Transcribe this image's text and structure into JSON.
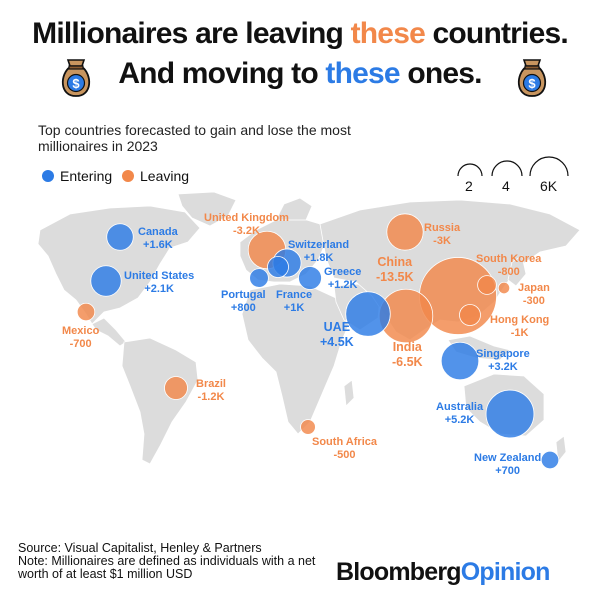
{
  "title": {
    "line1_pre": "Millionaires are leaving ",
    "line1_hl": "these",
    "line1_post": " countries.",
    "line2_pre": "And moving to ",
    "line2_hl": "these",
    "line2_post": " ones."
  },
  "subtitle": "Top countries forecasted to gain and lose the most millionaires in 2023",
  "legend": {
    "entering": {
      "label": "Entering",
      "color": "#2c7be5"
    },
    "leaving": {
      "label": "Leaving",
      "color": "#f2884a"
    }
  },
  "size_legend": [
    "2",
    "4",
    "6K"
  ],
  "chart_data": {
    "type": "bubble-map",
    "units": "millionaires (net change, 2023 forecast)",
    "points": [
      {
        "country": "Canada",
        "label": "+1.6K",
        "value": 1600,
        "direction": "entering"
      },
      {
        "country": "United States",
        "label": "+2.1K",
        "value": 2100,
        "direction": "entering"
      },
      {
        "country": "Mexico",
        "label": "-700",
        "value": -700,
        "direction": "leaving"
      },
      {
        "country": "Brazil",
        "label": "-1.2K",
        "value": -1200,
        "direction": "leaving"
      },
      {
        "country": "United Kingdom",
        "label": "-3.2K",
        "value": -3200,
        "direction": "leaving"
      },
      {
        "country": "Switzerland",
        "label": "+1.8K",
        "value": 1800,
        "direction": "entering"
      },
      {
        "country": "Portugal",
        "label": "+800",
        "value": 800,
        "direction": "entering"
      },
      {
        "country": "France",
        "label": "+1K",
        "value": 1000,
        "direction": "entering"
      },
      {
        "country": "Greece",
        "label": "+1.2K",
        "value": 1200,
        "direction": "entering"
      },
      {
        "country": "South Africa",
        "label": "-500",
        "value": -500,
        "direction": "leaving"
      },
      {
        "country": "UAE",
        "label": "+4.5K",
        "value": 4500,
        "direction": "entering"
      },
      {
        "country": "Russia",
        "label": "-3K",
        "value": -3000,
        "direction": "leaving"
      },
      {
        "country": "India",
        "label": "-6.5K",
        "value": -6500,
        "direction": "leaving"
      },
      {
        "country": "China",
        "label": "-13.5K",
        "value": -13500,
        "direction": "leaving"
      },
      {
        "country": "South Korea",
        "label": "-800",
        "value": -800,
        "direction": "leaving"
      },
      {
        "country": "Japan",
        "label": "-300",
        "value": -300,
        "direction": "leaving"
      },
      {
        "country": "Hong Kong",
        "label": "-1K",
        "value": -1000,
        "direction": "leaving"
      },
      {
        "country": "Singapore",
        "label": "+3.2K",
        "value": 3200,
        "direction": "entering"
      },
      {
        "country": "Australia",
        "label": "+5.2K",
        "value": 5200,
        "direction": "entering"
      },
      {
        "country": "New Zealand",
        "label": "+700",
        "value": 700,
        "direction": "entering"
      }
    ]
  },
  "footer": {
    "source": "Source: Visual Capitalist, Henley & Partners",
    "note": "Note: Millionaires are defined as individuals with a net worth of at least $1 million USD"
  },
  "brand": {
    "part1": "Bloomberg",
    "part2": "Opinion"
  }
}
